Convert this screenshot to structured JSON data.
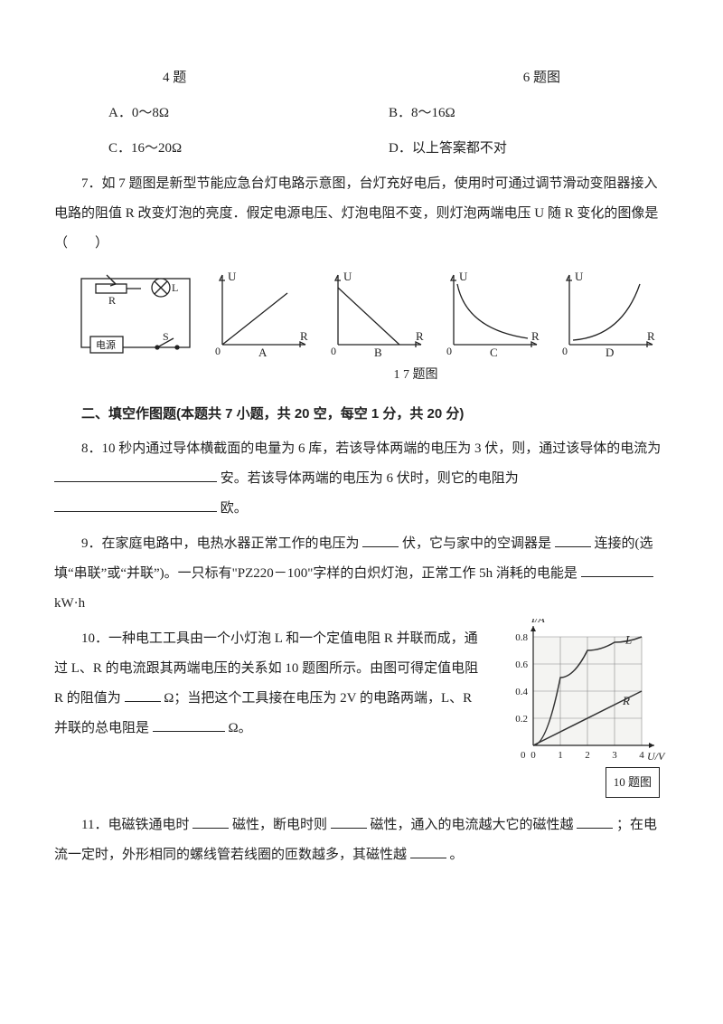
{
  "captions": {
    "q4": "4 题",
    "q6": "6 题图"
  },
  "q6": {
    "choices": {
      "A": "A．0～8Ω",
      "B": "B．8～16Ω",
      "C": "C．16～20Ω",
      "D": "D．以上答案都不对"
    }
  },
  "q7": {
    "text": "7．如 7 题图是新型节能应急台灯电路示意图，台灯充好电后，使用时可通过调节滑动变阻器接入电路的阻值 R 改变灯泡的亮度．假定电源电压、灯泡电阻不变，则灯泡两端电压 U 随 R 变化的图像是 （　　）",
    "caption": "1 7 题图",
    "axes": {
      "x": "R",
      "y": "U"
    },
    "labels": {
      "A": "A",
      "B": "B",
      "C": "C",
      "D": "D"
    },
    "circuit": {
      "R": "R",
      "L": "L",
      "S": "S",
      "bat": "电源"
    },
    "colors": {
      "stroke": "#222222",
      "fill": "#ffffff"
    }
  },
  "section2": {
    "head": "二、填空作图题(本题共 7 小题，共 20 空，每空 1 分，共 20 分)"
  },
  "q8": {
    "text1": "8．10 秒内通过导体横截面的电量为 6 库，若该导体两端的电压为 3 伏，则，通过该导体的电流为",
    "text2": "安。若该导体两端的电压为 6 伏时，则它的电阻为",
    "text3": "欧。"
  },
  "q9": {
    "text1": "9．在家庭电路中，电热水器正常工作的电压为",
    "text2": "伏，它与家中的空调器是",
    "text3": "连接的(选填“串联”或“并联”)。一只标有\"PZ220－100\"字样的白炽灯泡，正常工作 5h 消耗的电能是",
    "text4": "kW·h"
  },
  "q10": {
    "text1": "10．一种电工工具由一个小灯泡 L 和一个定值电阻 R 并联而成，通过 L、R 的电流跟其两端电压的关系如 10 题图所示。由图可得定值电阻 R 的阻值为",
    "text2": "Ω；当把这个工具接在电压为 2V 的电路两端，L、R 并联的总电阻是",
    "text3": "Ω。",
    "graph": {
      "x_label": "U/V",
      "y_label": "I/A",
      "x_ticks": [
        0,
        1,
        2,
        3,
        4
      ],
      "y_ticks": [
        0.2,
        0.4,
        0.6,
        0.8
      ],
      "xlim": [
        0,
        4
      ],
      "ylim": [
        0,
        0.8
      ],
      "series": {
        "L": {
          "label": "L",
          "points": [
            [
              0,
              0
            ],
            [
              1,
              0.5
            ],
            [
              2,
              0.7
            ],
            [
              3,
              0.76
            ],
            [
              4,
              0.8
            ]
          ],
          "color": "#333333",
          "width": 1.5
        },
        "R": {
          "label": "R",
          "points": [
            [
              0,
              0
            ],
            [
              4,
              0.4
            ]
          ],
          "color": "#333333",
          "width": 1.5
        }
      },
      "grid_color": "#888888",
      "bg": "#f4f4f2",
      "fontSize": 11
    },
    "caption": "10 题图"
  },
  "q11": {
    "text1": "11．电磁铁通电时",
    "text2": "磁性，断电时则",
    "text3": "磁性，通入的电流越大它的磁性越",
    "text4": "；在电流一定时，外形相同的螺线管若线圈的匝数越多，其磁性越",
    "text5": "。"
  }
}
